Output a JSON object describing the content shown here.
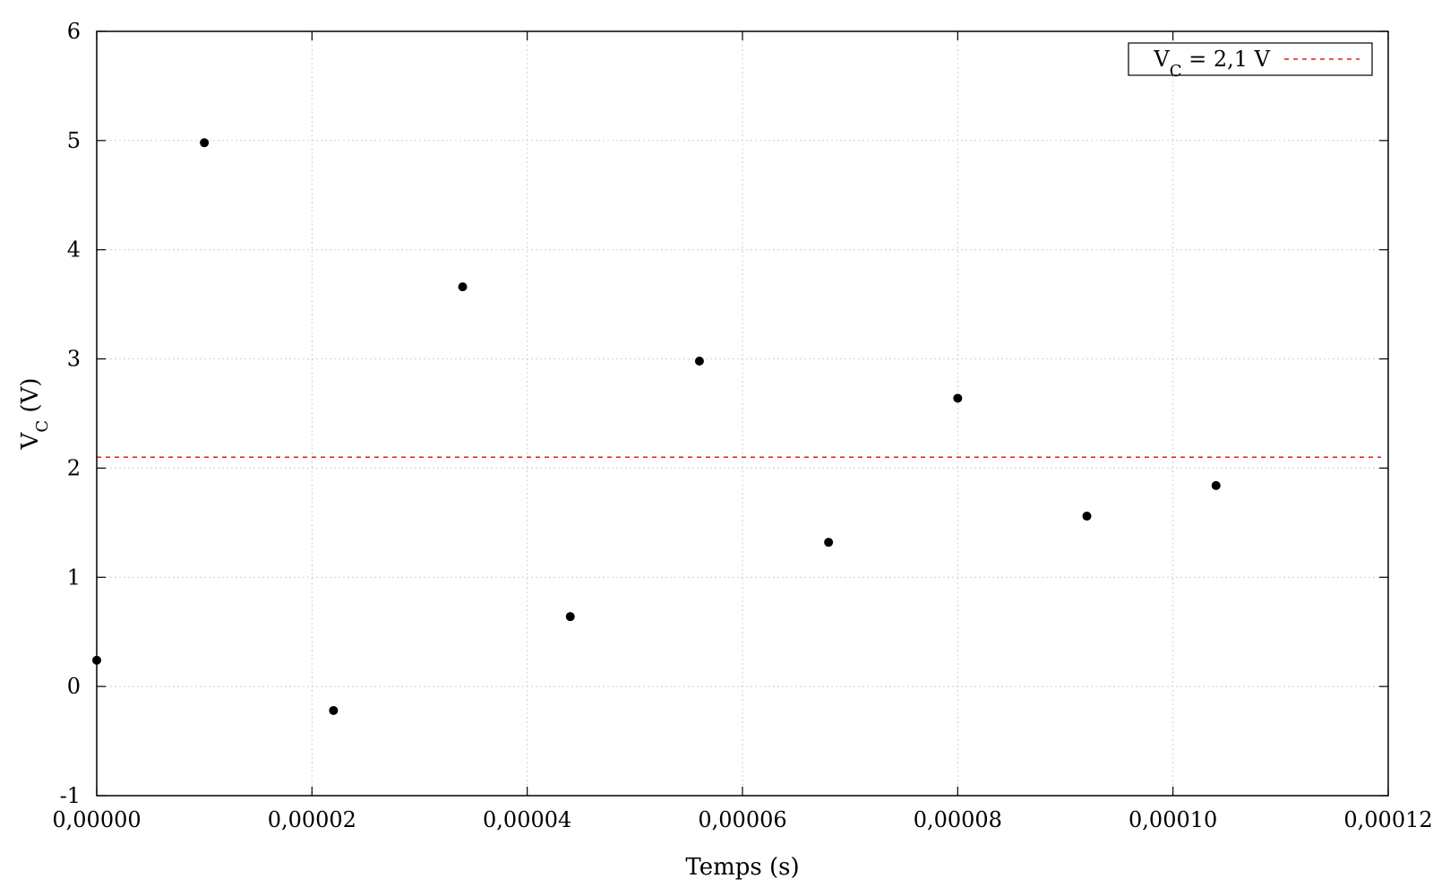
{
  "chart_data": {
    "type": "scatter",
    "xlabel": "Temps (s)",
    "ylabel_main": "V",
    "ylabel_sub": "C",
    "ylabel_suffix": " (V)",
    "xlim": [
      0,
      0.00012
    ],
    "ylim": [
      -1,
      6
    ],
    "x_ticks": [
      0,
      2e-05,
      4e-05,
      6e-05,
      8e-05,
      0.0001,
      0.00012
    ],
    "x_tick_labels": [
      "0,00000",
      "0,00002",
      "0,00004",
      "0,00006",
      "0,00008",
      "0,00010",
      "0,00012"
    ],
    "y_ticks": [
      -1,
      0,
      1,
      2,
      3,
      4,
      5,
      6
    ],
    "y_tick_labels": [
      "-1",
      "0",
      "1",
      "2",
      "3",
      "4",
      "5",
      "6"
    ],
    "grid": true,
    "legend_position": "top-right",
    "series": [
      {
        "type": "scatter",
        "color": "#000000",
        "x": [
          0,
          1e-05,
          2.2e-05,
          3.4e-05,
          4.4e-05,
          5.6e-05,
          6.8e-05,
          8e-05,
          9.2e-05,
          0.000104
        ],
        "y": [
          0.24,
          4.98,
          -0.22,
          3.66,
          0.64,
          2.98,
          1.32,
          2.64,
          1.56,
          1.84
        ]
      }
    ],
    "reference_lines": [
      {
        "type": "hline",
        "y": 2.1,
        "color": "#e41a1c",
        "style": "dashed",
        "legend_main": "V",
        "legend_sub": "C",
        "legend_suffix": " = 2,1 V"
      }
    ]
  }
}
